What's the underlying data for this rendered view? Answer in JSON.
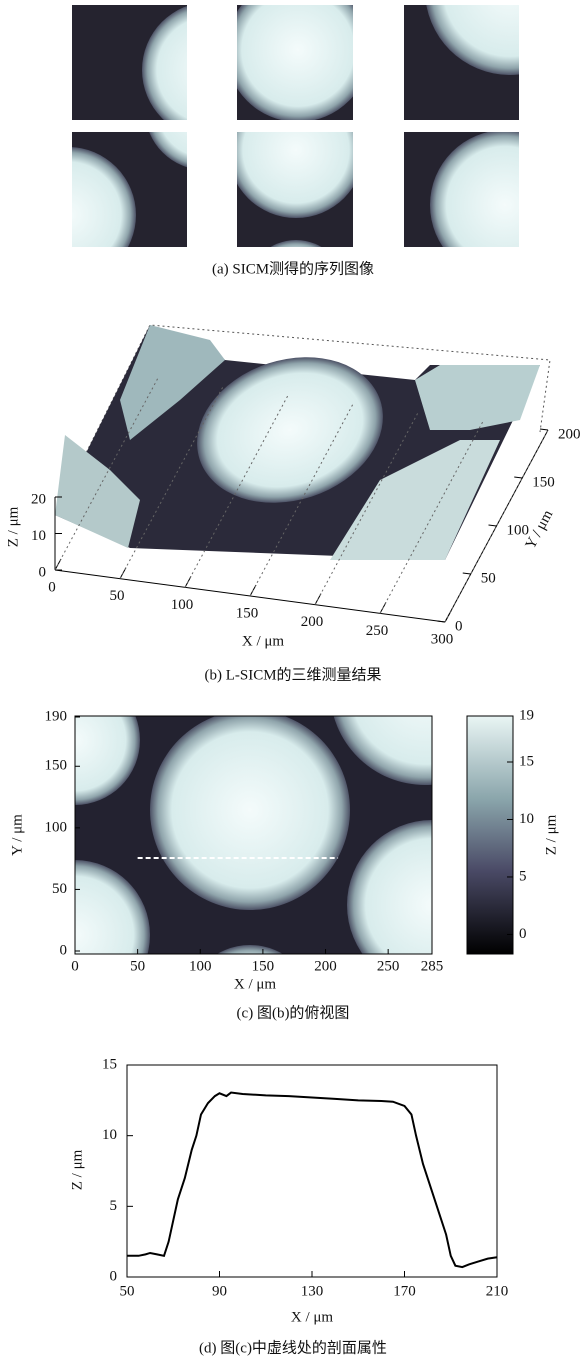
{
  "panel_a": {
    "caption": "(a) SICM测得的序列图像"
  },
  "panel_b": {
    "caption": "(b) L-SICM的三维测量结果",
    "x_label": "X / μm",
    "y_label": "Y / μm",
    "z_label": "Z / μm",
    "xlim": [
      0,
      300
    ],
    "xticks": [
      0,
      50,
      100,
      150,
      200,
      250,
      300
    ],
    "ylim": [
      0,
      200
    ],
    "yticks": [
      0,
      50,
      100,
      150,
      200
    ],
    "zlim": [
      0,
      20
    ],
    "zticks": [
      0,
      10,
      20
    ]
  },
  "panel_c": {
    "caption": "(c) 图(b)的俯视图",
    "x_label": "X / μm",
    "y_label": "Y / μm",
    "colorbar_label": "Z / μm",
    "xlim": [
      0,
      285
    ],
    "xticks": [
      0,
      50,
      100,
      150,
      200,
      250,
      285
    ],
    "ylim": [
      0,
      190
    ],
    "yticks": [
      0,
      50,
      100,
      150,
      190
    ],
    "colorbar_lim": [
      -1.7,
      19
    ],
    "colorbar_ticks": [
      0,
      5,
      10,
      15,
      19
    ]
  },
  "chart_data": {
    "type": "line",
    "caption": "(d) 图(c)中虚线处的剖面属性",
    "x_label": "X / μm",
    "y_label": "Z / μm",
    "x": [
      50,
      55,
      58,
      60,
      63,
      66,
      68,
      70,
      72,
      75,
      78,
      80,
      82,
      85,
      88,
      90,
      93,
      95,
      100,
      110,
      120,
      130,
      140,
      150,
      160,
      165,
      170,
      173,
      175,
      178,
      182,
      185,
      188,
      190,
      192,
      195,
      198,
      202,
      206,
      210
    ],
    "series": [
      {
        "color": "#000000",
        "values": [
          1.5,
          1.5,
          1.6,
          1.7,
          1.6,
          1.5,
          2.5,
          4,
          5.5,
          7,
          9,
          10,
          11.5,
          12.3,
          12.8,
          13,
          12.8,
          13.05,
          12.95,
          12.85,
          12.8,
          12.7,
          12.6,
          12.5,
          12.45,
          12.4,
          12.1,
          11.5,
          10,
          8,
          6,
          4.5,
          3,
          1.5,
          0.8,
          0.7,
          0.9,
          1.1,
          1.3,
          1.4
        ]
      }
    ],
    "xlim": [
      50,
      210
    ],
    "xticks": [
      50,
      90,
      130,
      170,
      210
    ],
    "ylim": [
      0,
      15
    ],
    "yticks": [
      0,
      5,
      10,
      15
    ]
  }
}
